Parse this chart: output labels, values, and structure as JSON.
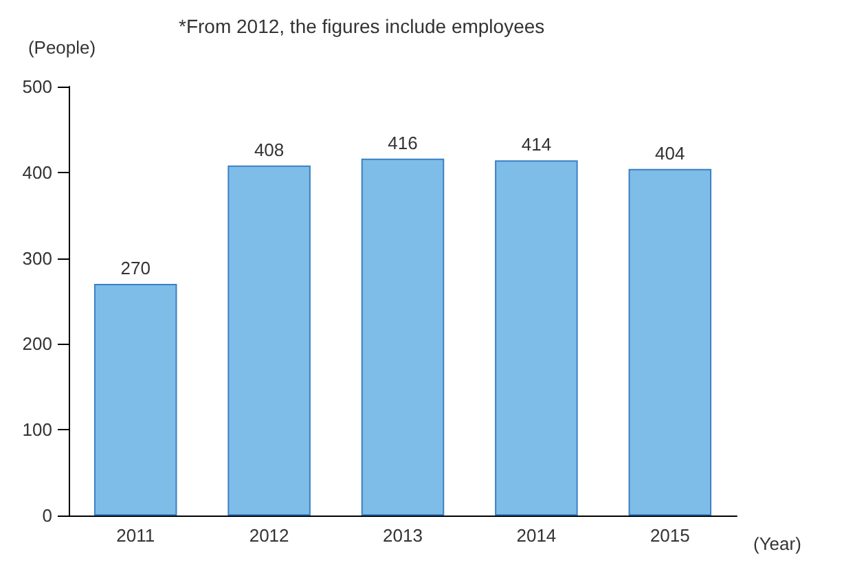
{
  "chart_data": {
    "type": "bar",
    "ylabel": "(People)",
    "xlabel": "(Year)",
    "annotations": [
      "*From 2012, the figures include employees"
    ],
    "categories": [
      "2011",
      "2012",
      "2013",
      "2014",
      "2015"
    ],
    "values": [
      270,
      408,
      416,
      414,
      404
    ],
    "color": "#7dbde8",
    "ylim": [
      0,
      500
    ],
    "yticks": [
      0,
      100,
      200,
      300,
      400,
      500
    ],
    "grid": false,
    "data_labels": true
  }
}
